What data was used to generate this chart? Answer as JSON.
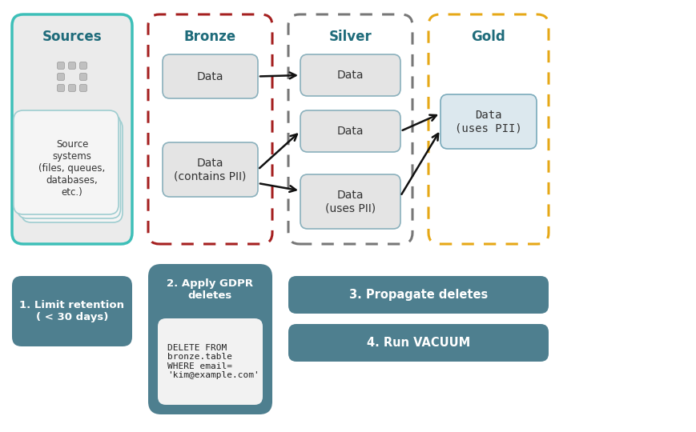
{
  "bg_color": "#ffffff",
  "title_color": "#1e6b7a",
  "box_fill_light": "#e8e8e8",
  "box_fill_teal_light": "#ccdee3",
  "box_fill_blue_light": "#daeaf0",
  "box_fill_mid": "#4e7f8f",
  "box_stroke_teal": "#3dbfb8",
  "box_stroke_red": "#a52020",
  "box_stroke_gray": "#777777",
  "box_stroke_gold": "#e6a817",
  "box_inner_stroke": "#7aaabb",
  "text_dark": "#333333",
  "text_white": "#ffffff",
  "text_code": "#222222",
  "sources_title": "Sources",
  "bronze_title": "Bronze",
  "silver_title": "Silver",
  "gold_title": "Gold",
  "boxes_bronze": [
    "Data",
    "Data\n(contains PII)"
  ],
  "boxes_silver": [
    "Data",
    "Data",
    "Data\n(uses PII)"
  ],
  "boxes_gold": [
    "Data\n(uses PII)"
  ],
  "step1_text": "1. Limit retention\n( < 30 days)",
  "step2_title": "2. Apply GDPR\ndeletes",
  "step2_code": "DELETE FROM\nbronze.table\nWHERE email=\n'kim@example.com'",
  "step3_text": "3. Propagate deletes",
  "step4_text": "4. Run VACUUM",
  "sources_text": "Source\nsystems\n(files, queues,\ndatabases,\netc.)"
}
